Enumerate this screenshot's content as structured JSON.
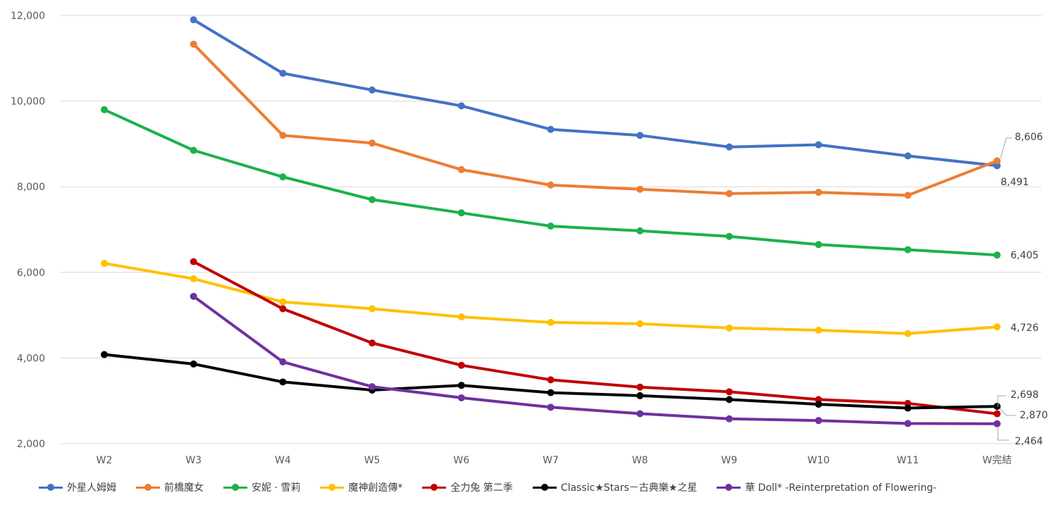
{
  "chart_data": {
    "type": "line",
    "categories": [
      "W2",
      "W3",
      "W4",
      "W5",
      "W6",
      "W7",
      "W8",
      "W9",
      "W10",
      "W11",
      "W完結"
    ],
    "ylim": [
      2000,
      12000
    ],
    "yticks": [
      2000,
      4000,
      6000,
      8000,
      10000,
      12000
    ],
    "ytick_labels": [
      "2,000",
      "4,000",
      "6,000",
      "8,000",
      "10,000",
      "12,000"
    ],
    "grid": true,
    "legend_position": "bottom",
    "series": [
      {
        "name": "外星人姆姆",
        "color": "#4472c4",
        "values": [
          null,
          11900,
          10650,
          10260,
          9890,
          9340,
          9200,
          8930,
          8980,
          8720,
          8491
        ],
        "end_label": "8,491"
      },
      {
        "name": "前橋魔女",
        "color": "#ed7d31",
        "values": [
          null,
          11330,
          9200,
          9020,
          8400,
          8040,
          7940,
          7840,
          7870,
          7800,
          8606
        ],
        "end_label": "8,606"
      },
      {
        "name": "安妮 · 雪莉",
        "color": "#1bb14b",
        "values": [
          9800,
          8850,
          8230,
          7700,
          7390,
          7080,
          6970,
          6840,
          6650,
          6530,
          6405
        ],
        "end_label": "6,405"
      },
      {
        "name": "魔神創造傳*",
        "color": "#ffc000",
        "values": [
          6210,
          5850,
          5310,
          5150,
          4960,
          4830,
          4800,
          4700,
          4650,
          4570,
          4726
        ],
        "end_label": "4,726"
      },
      {
        "name": "全力兔 第二季",
        "color": "#c00000",
        "values": [
          null,
          6250,
          5150,
          4350,
          3830,
          3490,
          3320,
          3210,
          3030,
          2940,
          2698
        ],
        "end_label": "2,698"
      },
      {
        "name": "Classic★Stars－古典樂★之星",
        "color": "#000000",
        "values": [
          4080,
          3860,
          3440,
          3250,
          3360,
          3190,
          3120,
          3030,
          2920,
          2830,
          2870
        ],
        "end_label": "2,870"
      },
      {
        "name": "華 Doll* -Reinterpretation of Flowering-",
        "color": "#7030a0",
        "values": [
          null,
          5440,
          3910,
          3330,
          3070,
          2850,
          2700,
          2580,
          2540,
          2470,
          2464
        ],
        "end_label": "2,464"
      }
    ]
  }
}
